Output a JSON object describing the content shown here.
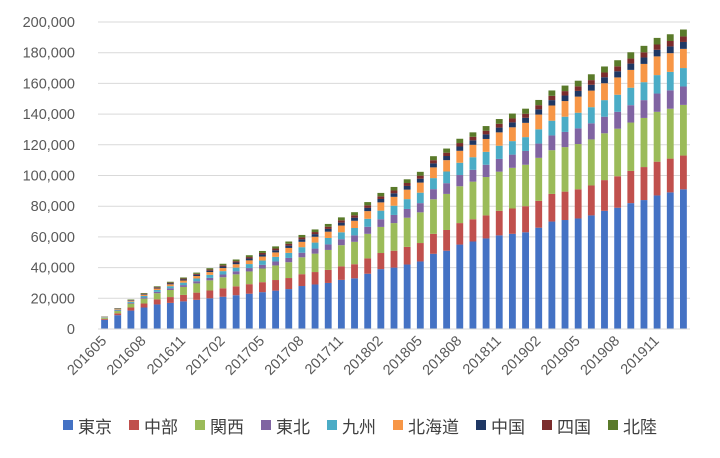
{
  "chart_data": {
    "type": "bar",
    "stacked": true,
    "title": "",
    "xlabel": "",
    "ylabel": "",
    "ylim": [
      0,
      200000
    ],
    "yticks": [
      0,
      20000,
      40000,
      60000,
      80000,
      100000,
      120000,
      140000,
      160000,
      180000,
      200000
    ],
    "ytick_labels": [
      "0",
      "20,000",
      "40,000",
      "60,000",
      "80,000",
      "100,000",
      "120,000",
      "140,000",
      "160,000",
      "180,000",
      "200,000"
    ],
    "categories": [
      "201605",
      "201606",
      "201607",
      "201608",
      "201609",
      "201610",
      "201611",
      "201612",
      "201701",
      "201702",
      "201703",
      "201704",
      "201705",
      "201706",
      "201707",
      "201708",
      "201709",
      "201710",
      "201711",
      "201712",
      "201801",
      "201802",
      "201803",
      "201804",
      "201805",
      "201806",
      "201807",
      "201808",
      "201809",
      "201810",
      "201811",
      "201812",
      "201901",
      "201902",
      "201903",
      "201904",
      "201905",
      "201906",
      "201907",
      "201908",
      "201909",
      "201910",
      "201911",
      "201912",
      "202001"
    ],
    "xtick_labels": [
      "201605",
      "201608",
      "201611",
      "201702",
      "201705",
      "201708",
      "201711",
      "201802",
      "201805",
      "201808",
      "201811",
      "201902",
      "201905",
      "201908",
      "201911"
    ],
    "legend_position": "bottom",
    "grid": "horizontal",
    "series": [
      {
        "name": "東京",
        "color": "#4472C4",
        "values": [
          6000,
          9000,
          12000,
          14000,
          16000,
          17000,
          18000,
          19000,
          20000,
          21000,
          22000,
          23000,
          24000,
          25000,
          26000,
          28000,
          29000,
          30000,
          32000,
          33000,
          36000,
          39000,
          40000,
          42000,
          44000,
          49000,
          51000,
          55000,
          57000,
          59000,
          61000,
          62000,
          63000,
          66000,
          70000,
          71000,
          72000,
          74000,
          77000,
          79000,
          82000,
          84000,
          87000,
          89000,
          91000
        ]
      },
      {
        "name": "中部",
        "color": "#C0504D",
        "values": [
          600,
          1200,
          2000,
          2600,
          3300,
          3800,
          4200,
          4700,
          5100,
          5500,
          5800,
          6200,
          6500,
          6900,
          7200,
          7700,
          8100,
          8500,
          8800,
          9200,
          10000,
          10500,
          11000,
          11500,
          12000,
          13000,
          13500,
          14000,
          14500,
          15000,
          16000,
          16500,
          17000,
          17500,
          18000,
          18500,
          19000,
          19500,
          20000,
          20500,
          21000,
          21500,
          22000,
          22000,
          22000
        ]
      },
      {
        "name": "関西",
        "color": "#9BBB59",
        "values": [
          700,
          1500,
          2500,
          3200,
          4000,
          4600,
          5200,
          6000,
          6600,
          7200,
          7800,
          8300,
          8900,
          9500,
          10300,
          11000,
          12000,
          13000,
          13800,
          14600,
          16000,
          17000,
          18000,
          19000,
          20000,
          22500,
          23500,
          24000,
          24500,
          25000,
          25500,
          26500,
          27000,
          28000,
          28500,
          29000,
          29500,
          30000,
          30500,
          31000,
          31500,
          32000,
          32500,
          32500,
          33000
        ]
      },
      {
        "name": "東北",
        "color": "#8064A2",
        "values": [
          100,
          300,
          500,
          700,
          900,
          1100,
          1200,
          1400,
          1600,
          1800,
          2000,
          2200,
          2400,
          2600,
          2800,
          3000,
          3300,
          3600,
          3900,
          4200,
          4600,
          5000,
          5300,
          5700,
          6000,
          6600,
          7000,
          7300,
          7700,
          8000,
          8300,
          8600,
          9000,
          9300,
          9600,
          9900,
          10200,
          10500,
          10800,
          11000,
          11300,
          11600,
          11900,
          12000,
          12000
        ]
      },
      {
        "name": "九州",
        "color": "#4BACC6",
        "values": [
          300,
          600,
          800,
          1000,
          1200,
          1400,
          1600,
          1800,
          2000,
          2200,
          2400,
          2600,
          2800,
          3000,
          3300,
          3600,
          3900,
          4200,
          4500,
          4800,
          5200,
          5600,
          6000,
          6400,
          6800,
          7200,
          7600,
          8000,
          8200,
          8400,
          8600,
          8800,
          9000,
          9300,
          9600,
          9900,
          10200,
          10500,
          10800,
          11100,
          11400,
          11700,
          12000,
          12000,
          12000
        ]
      },
      {
        "name": "北海道",
        "color": "#F79646",
        "values": [
          200,
          400,
          600,
          800,
          1000,
          1200,
          1400,
          1600,
          1800,
          2000,
          2200,
          2400,
          2600,
          2900,
          3200,
          3500,
          3800,
          4100,
          4400,
          4700,
          5000,
          5400,
          5800,
          6200,
          6600,
          7000,
          7400,
          7800,
          8100,
          8400,
          8700,
          9000,
          9300,
          9600,
          9900,
          10200,
          10500,
          10800,
          11000,
          11300,
          11600,
          11900,
          12200,
          12200,
          12500
        ]
      },
      {
        "name": "中国",
        "color": "#1F3864",
        "values": [
          100,
          200,
          300,
          400,
          500,
          600,
          700,
          800,
          900,
          1000,
          1100,
          1200,
          1300,
          1400,
          1500,
          1600,
          1700,
          1800,
          1900,
          2000,
          2100,
          2200,
          2300,
          2400,
          2500,
          2600,
          2700,
          2800,
          2900,
          3000,
          3100,
          3200,
          3300,
          3400,
          3500,
          3600,
          3700,
          3800,
          3900,
          4000,
          4100,
          4200,
          4300,
          4400,
          4500
        ]
      },
      {
        "name": "四国",
        "color": "#7B2C2C",
        "values": [
          80,
          160,
          240,
          320,
          400,
          480,
          560,
          640,
          720,
          800,
          880,
          960,
          1040,
          1120,
          1200,
          1280,
          1360,
          1440,
          1520,
          1600,
          1680,
          1760,
          1840,
          1920,
          2000,
          2080,
          2160,
          2240,
          2320,
          2400,
          2480,
          2560,
          2640,
          2720,
          2800,
          2880,
          2960,
          3040,
          3120,
          3200,
          3280,
          3360,
          3440,
          3520,
          3600
        ]
      },
      {
        "name": "北陸",
        "color": "#5A7A2A",
        "values": [
          100,
          200,
          300,
          400,
          500,
          600,
          700,
          800,
          900,
          1000,
          1100,
          1200,
          1300,
          1400,
          1500,
          1600,
          1700,
          1800,
          1900,
          2000,
          2100,
          2200,
          2300,
          2400,
          2500,
          2600,
          2700,
          2800,
          2900,
          3000,
          3100,
          3200,
          3300,
          3400,
          3500,
          3600,
          3700,
          3800,
          3900,
          4000,
          4100,
          4200,
          4300,
          4400,
          4500
        ]
      }
    ]
  }
}
